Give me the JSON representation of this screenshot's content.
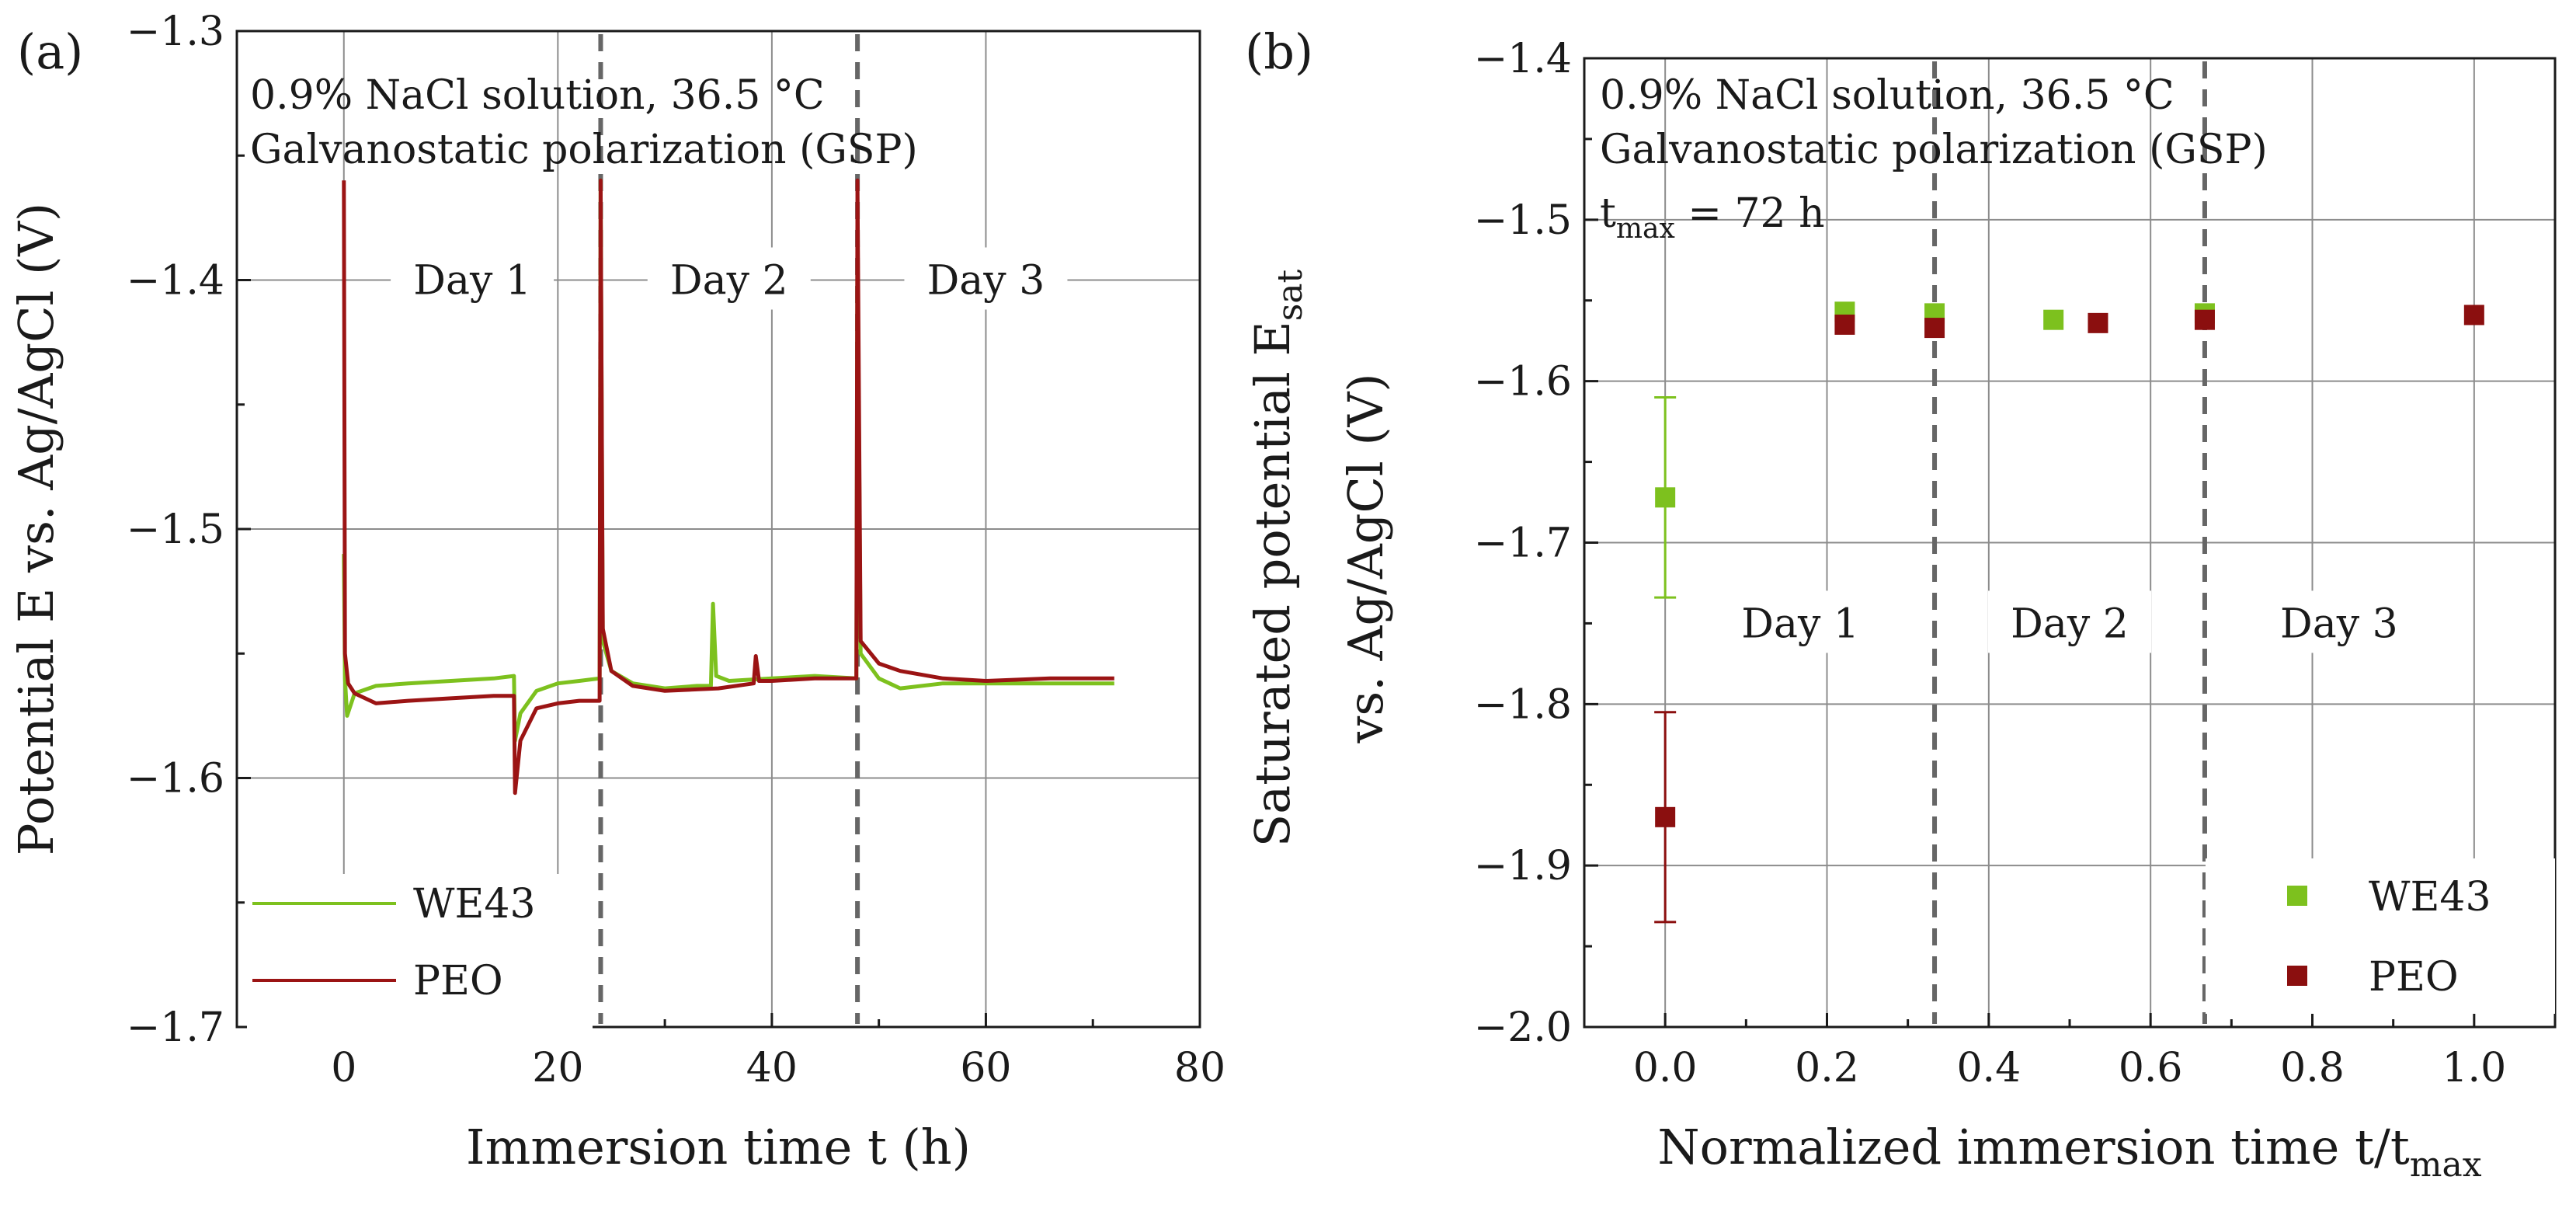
{
  "chart_data": [
    {
      "panel_label": "(a)",
      "type": "line",
      "xlabel": "Immersion time t (h)",
      "ylabel": "Potential E vs. Ag/AgCl (V)",
      "xlim": [
        -10,
        80
      ],
      "ylim": [
        -1.7,
        -1.3
      ],
      "xticks": [
        0,
        20,
        40,
        60,
        80
      ],
      "xtick_labels": [
        "0",
        "20",
        "40",
        "60",
        "80"
      ],
      "yticks": [
        -1.3,
        -1.4,
        -1.5,
        -1.6,
        -1.7
      ],
      "ytick_labels": [
        "−1.3",
        "−1.4",
        "−1.5",
        "−1.6",
        "−1.7"
      ],
      "grid": true,
      "annotation_lines": [
        "0.9% NaCl solution, 36.5 °C",
        "Galvanostatic polarization (GSP)"
      ],
      "day_labels": [
        {
          "text": "Day 1",
          "x": 12,
          "y": -1.4
        },
        {
          "text": "Day 2",
          "x": 36,
          "y": -1.4
        },
        {
          "text": "Day 3",
          "x": 60,
          "y": -1.4
        }
      ],
      "dashed_lines_x": [
        24,
        48
      ],
      "legend": {
        "position": "bottom-left",
        "entries": [
          "WE43",
          "PEO"
        ]
      },
      "series": [
        {
          "name": "WE43",
          "color": "#7dc11e",
          "points": [
            [
              0,
              -1.51
            ],
            [
              0.1,
              -1.56
            ],
            [
              0.3,
              -1.575
            ],
            [
              1,
              -1.566
            ],
            [
              3,
              -1.563
            ],
            [
              6,
              -1.562
            ],
            [
              10,
              -1.561
            ],
            [
              14,
              -1.56
            ],
            [
              15.9,
              -1.559
            ],
            [
              16,
              -1.585
            ],
            [
              16.5,
              -1.574
            ],
            [
              18,
              -1.565
            ],
            [
              20,
              -1.562
            ],
            [
              22,
              -1.561
            ],
            [
              23.9,
              -1.56
            ],
            [
              24,
              -1.36
            ],
            [
              24.2,
              -1.545
            ],
            [
              25,
              -1.557
            ],
            [
              27,
              -1.562
            ],
            [
              30,
              -1.564
            ],
            [
              33,
              -1.563
            ],
            [
              34.3,
              -1.563
            ],
            [
              34.5,
              -1.53
            ],
            [
              34.8,
              -1.559
            ],
            [
              36,
              -1.561
            ],
            [
              40,
              -1.56
            ],
            [
              44,
              -1.559
            ],
            [
              47.9,
              -1.56
            ],
            [
              48,
              -1.38
            ],
            [
              48.3,
              -1.55
            ],
            [
              50,
              -1.56
            ],
            [
              52,
              -1.564
            ],
            [
              56,
              -1.562
            ],
            [
              60,
              -1.562
            ],
            [
              66,
              -1.562
            ],
            [
              72,
              -1.562
            ]
          ]
        },
        {
          "name": "PEO",
          "color": "#9b1414",
          "points": [
            [
              0,
              -1.36
            ],
            [
              0.1,
              -1.55
            ],
            [
              0.4,
              -1.562
            ],
            [
              1,
              -1.566
            ],
            [
              3,
              -1.57
            ],
            [
              6,
              -1.569
            ],
            [
              10,
              -1.568
            ],
            [
              14,
              -1.567
            ],
            [
              15.9,
              -1.567
            ],
            [
              16,
              -1.606
            ],
            [
              16.5,
              -1.585
            ],
            [
              18,
              -1.572
            ],
            [
              20,
              -1.57
            ],
            [
              22,
              -1.569
            ],
            [
              23.9,
              -1.569
            ],
            [
              24,
              -1.36
            ],
            [
              24.2,
              -1.54
            ],
            [
              25,
              -1.557
            ],
            [
              27,
              -1.563
            ],
            [
              30,
              -1.565
            ],
            [
              35,
              -1.564
            ],
            [
              38.3,
              -1.562
            ],
            [
              38.5,
              -1.551
            ],
            [
              38.8,
              -1.561
            ],
            [
              40,
              -1.561
            ],
            [
              44,
              -1.56
            ],
            [
              47.9,
              -1.56
            ],
            [
              48,
              -1.36
            ],
            [
              48.3,
              -1.545
            ],
            [
              50,
              -1.554
            ],
            [
              52,
              -1.557
            ],
            [
              56,
              -1.56
            ],
            [
              60,
              -1.561
            ],
            [
              66,
              -1.56
            ],
            [
              72,
              -1.56
            ]
          ]
        }
      ]
    },
    {
      "panel_label": "(b)",
      "type": "scatter",
      "xlabel_main": "Normalized immersion time t/t",
      "xlabel_sub": "max",
      "ylabel_line1_main": "Saturated potential E",
      "ylabel_line1_sub": "sat",
      "ylabel_line2": "vs. Ag/AgCl (V)",
      "xlim": [
        -0.1,
        1.1
      ],
      "ylim": [
        -2.0,
        -1.4
      ],
      "xticks": [
        0.0,
        0.2,
        0.4,
        0.6,
        0.8,
        1.0
      ],
      "xtick_labels": [
        "0.0",
        "0.2",
        "0.4",
        "0.6",
        "0.8",
        "1.0"
      ],
      "yticks": [
        -1.4,
        -1.5,
        -1.6,
        -1.7,
        -1.8,
        -1.9,
        -2.0
      ],
      "ytick_labels": [
        "−1.4",
        "−1.5",
        "−1.6",
        "−1.7",
        "−1.8",
        "−1.9",
        "−2.0"
      ],
      "grid": true,
      "annotation_lines": [
        "0.9% NaCl solution, 36.5 °C",
        "Galvanostatic polarization (GSP)"
      ],
      "tmax_main": "t",
      "tmax_sub": "max",
      "tmax_value": " = 72 h",
      "day_labels": [
        {
          "text": "Day 1",
          "x": 0.167,
          "y": -1.75
        },
        {
          "text": "Day 2",
          "x": 0.5,
          "y": -1.75
        },
        {
          "text": "Day 3",
          "x": 0.833,
          "y": -1.75
        }
      ],
      "dashed_lines_x": [
        0.333,
        0.667
      ],
      "legend": {
        "position": "bottom-right",
        "entries": [
          "WE43",
          "PEO"
        ]
      },
      "series": [
        {
          "name": "WE43",
          "color": "#7dc11e",
          "points": [
            [
              0.0,
              -1.672,
              0.062
            ],
            [
              0.222,
              -1.557,
              0
            ],
            [
              0.333,
              -1.558,
              0
            ],
            [
              0.48,
              -1.562,
              0
            ],
            [
              0.667,
              -1.558,
              0
            ]
          ]
        },
        {
          "name": "PEO",
          "color": "#8b0f0f",
          "points": [
            [
              0.0,
              -1.87,
              0.065
            ],
            [
              0.222,
              -1.565,
              0
            ],
            [
              0.333,
              -1.567,
              0
            ],
            [
              0.535,
              -1.564,
              0
            ],
            [
              0.667,
              -1.562,
              0
            ],
            [
              1.0,
              -1.559,
              0
            ]
          ]
        }
      ]
    }
  ]
}
